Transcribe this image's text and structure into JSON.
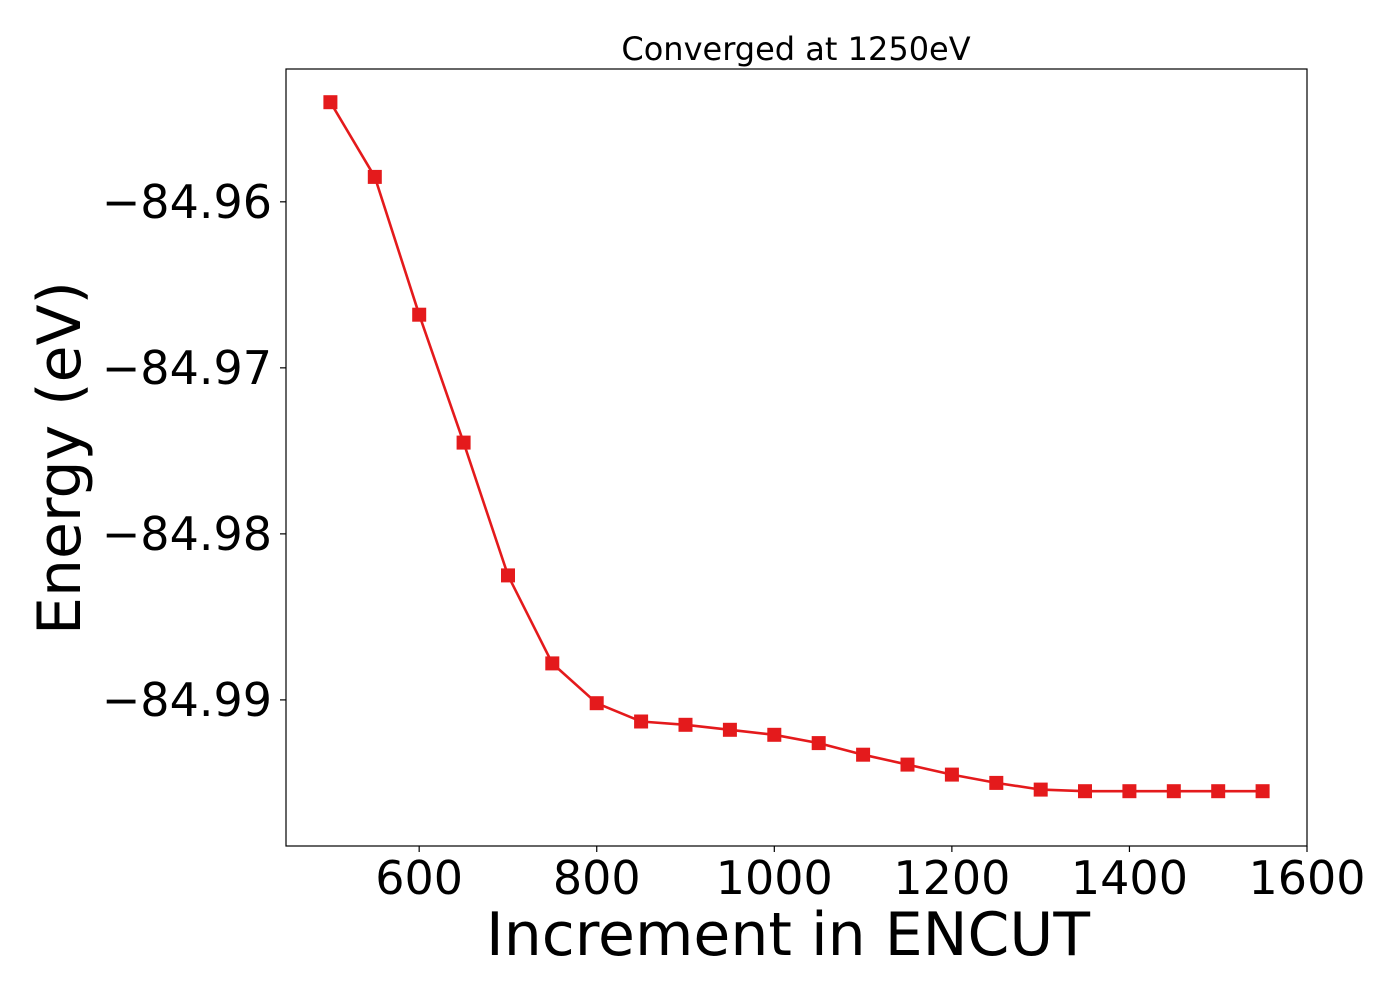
{
  "chart_data": {
    "type": "line",
    "title": "Converged at 1250eV",
    "xlabel": "Increment in ENCUT",
    "ylabel": "Energy (eV)",
    "xlim": [
      450,
      1600
    ],
    "ylim": [
      -84.9988,
      -84.952
    ],
    "xticks": [
      600,
      800,
      1000,
      1200,
      1400,
      1600
    ],
    "xtick_labels": [
      "600",
      "800",
      "1000",
      "1200",
      "1400",
      "1600"
    ],
    "yticks": [
      -84.96,
      -84.97,
      -84.98,
      -84.99
    ],
    "ytick_labels": [
      "−84.96",
      "−84.97",
      "−84.98",
      "−84.99"
    ],
    "grid": false,
    "legend": "none",
    "series": [
      {
        "color": "#e41a1c",
        "marker": "square",
        "x": [
          500,
          550,
          600,
          650,
          700,
          750,
          800,
          850,
          900,
          950,
          1000,
          1050,
          1100,
          1150,
          1200,
          1250,
          1300,
          1350,
          1400,
          1450,
          1500,
          1550
        ],
        "y": [
          -84.954,
          -84.9585,
          -84.9668,
          -84.9745,
          -84.9825,
          -84.9878,
          -84.9902,
          -84.9913,
          -84.9915,
          -84.9918,
          -84.9921,
          -84.9926,
          -84.9933,
          -84.9939,
          -84.9945,
          -84.995,
          -84.9954,
          -84.9955,
          -84.9955,
          -84.9955,
          -84.9955,
          -84.9955
        ]
      }
    ]
  }
}
